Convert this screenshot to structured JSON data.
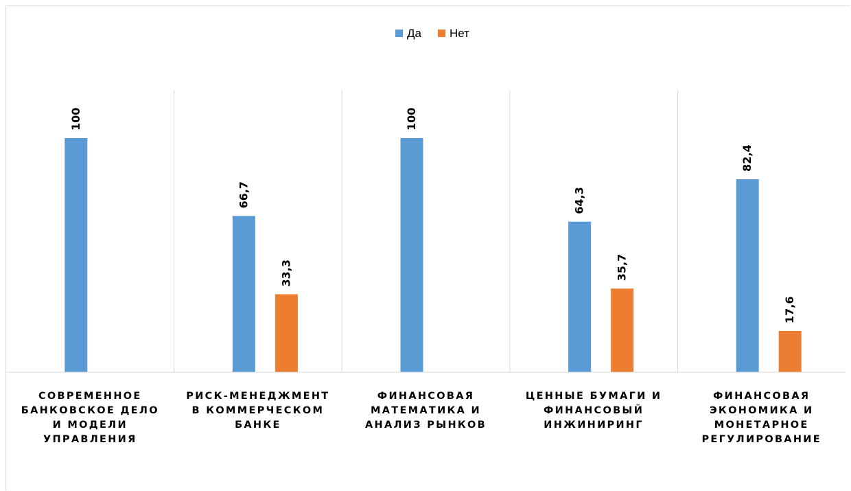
{
  "chart_data": {
    "type": "bar",
    "categories": [
      [
        "СОВРЕМЕННОЕ",
        "БАНКОВСКОЕ ДЕЛО",
        "И МОДЕЛИ",
        "УПРАВЛЕНИЯ"
      ],
      [
        "РИСК-МЕНЕДЖМЕНТ",
        "В КОММЕРЧЕСКОМ",
        "БАНКЕ"
      ],
      [
        "ФИНАНСОВАЯ",
        "МАТЕМАТИКА И",
        "АНАЛИЗ РЫНКОВ"
      ],
      [
        "ЦЕННЫЕ БУМАГИ И",
        "ФИНАНСОВЫЙ",
        "ИНЖИНИРИНГ"
      ],
      [
        "ФИНАНСОВАЯ",
        "ЭКОНОМИКА И",
        "МОНЕТАРНОЕ",
        "РЕГУЛИРОВАНИЕ"
      ]
    ],
    "series": [
      {
        "name": "Да",
        "color": "#5b9bd5",
        "values": [
          100,
          66.7,
          100,
          64.3,
          82.4
        ],
        "labels": [
          "100",
          "66,7",
          "100",
          "64,3",
          "82,4"
        ]
      },
      {
        "name": "Нет",
        "color": "#ed7d31",
        "values": [
          null,
          33.3,
          null,
          35.7,
          17.6
        ],
        "labels": [
          "",
          "33,3",
          "",
          "35,7",
          "17,6"
        ]
      }
    ],
    "ylim": [
      0,
      100
    ],
    "grid": false,
    "legend_position": "top",
    "category_separators": true,
    "axis_color": "#d9d9d9"
  }
}
